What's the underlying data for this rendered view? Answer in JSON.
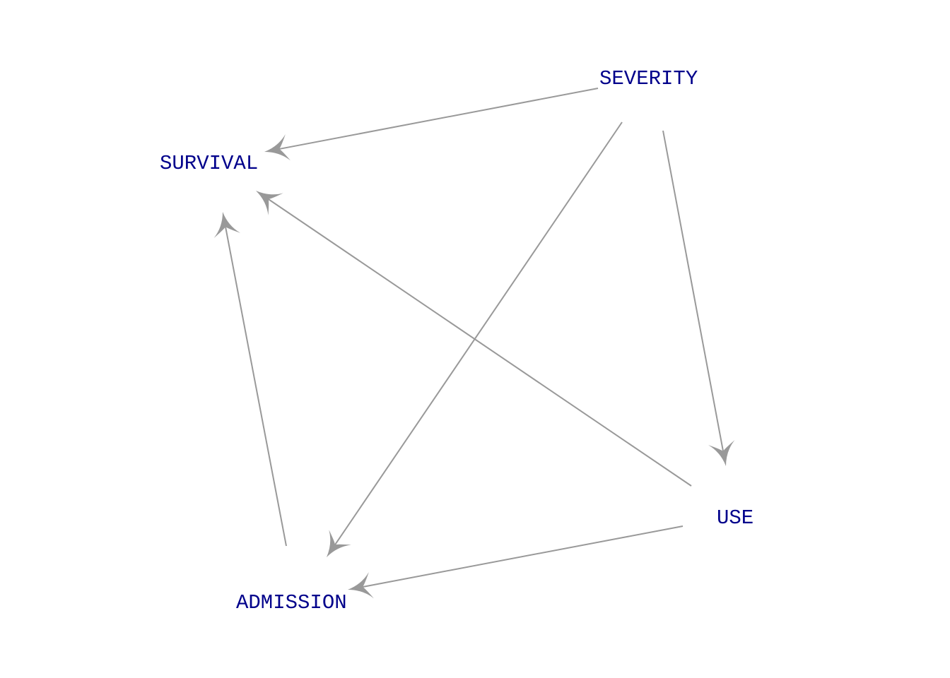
{
  "colors": {
    "edge": "#999999",
    "label": "#00008B",
    "background": "#ffffff"
  },
  "nodes": [
    {
      "id": "severity",
      "label": "SEVERITY"
    },
    {
      "id": "survival",
      "label": "SURVIVAL"
    },
    {
      "id": "use",
      "label": "USE"
    },
    {
      "id": "admission",
      "label": "ADMISSION"
    }
  ],
  "edges": [
    {
      "from": "severity",
      "to": "survival"
    },
    {
      "from": "severity",
      "to": "admission"
    },
    {
      "from": "severity",
      "to": "use"
    },
    {
      "from": "use",
      "to": "survival"
    },
    {
      "from": "use",
      "to": "admission"
    },
    {
      "from": "admission",
      "to": "survival"
    }
  ]
}
